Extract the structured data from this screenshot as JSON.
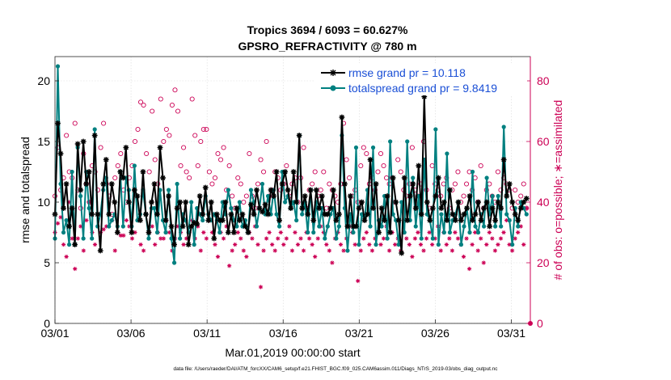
{
  "chart_data": {
    "type": "line",
    "title": [
      "Tropics 3694 / 6093 = 60.627%",
      "GPSRO_REFRACTIVITY @ 780 m"
    ],
    "xlabel": "Mar.01,2019 00:00:00 start",
    "ylabel_left": "rmse and totalspread",
    "ylabel_right": "# of obs: o=possible; ∗=assimilated",
    "footer": "data file: /Users/raeder/DAI/ATM_forcXX/CAM6_setup/f.e21.FHIST_BGC.f09_025.CAM6assim.011/Diags_NTrS_2019-03/obs_diag_output.nc",
    "x_tick_labels": [
      "03/01",
      "03/06",
      "03/11",
      "03/16",
      "03/21",
      "03/26",
      "03/31"
    ],
    "x_tick_days": [
      0,
      5,
      10,
      15,
      20,
      25,
      30
    ],
    "xlim": [
      0,
      31.25
    ],
    "ylim_left": [
      0,
      22
    ],
    "yticks_left": [
      0,
      5,
      10,
      15,
      20
    ],
    "ylim_right": [
      0,
      88
    ],
    "yticks_right": [
      0,
      20,
      40,
      60,
      80
    ],
    "colors": {
      "rmse": "#000000",
      "spread": "#008080",
      "obs": "#cc0055"
    },
    "legend_position": "top-right",
    "series": [
      {
        "name": "rmse grand pr = 10.118",
        "axis": "left",
        "marker": "asterisk",
        "values": [
          9.0,
          16.5,
          14.0,
          9.5,
          11.5,
          8.0,
          9.5,
          6.5,
          14.8,
          11.0,
          15.0,
          11.5,
          12.5,
          9.0,
          15.5,
          9.0,
          6.0,
          11.5,
          13.5,
          9.0,
          11.5,
          10.0,
          7.5,
          12.5,
          12.0,
          14.5,
          10.0,
          7.5,
          11.0,
          10.5,
          8.5,
          12.5,
          9.0,
          7.5,
          10.0,
          11.5,
          9.0,
          14.5,
          12.0,
          8.5,
          10.5,
          8.0,
          6.5,
          9.5,
          10.0,
          8.0,
          10.0,
          6.5,
          8.0,
          8.3,
          8.2,
          10.5,
          9.0,
          11.2,
          8.5,
          10.0,
          7.0,
          9.0,
          8.5,
          8.5,
          10.0,
          7.5,
          9.0,
          7.5,
          9.5,
          8.5,
          9.0,
          8.0,
          7.5,
          9.8,
          9.0,
          11.0,
          9.5,
          9.2,
          9.8,
          9.0,
          11.0,
          10.5,
          12.5,
          8.5,
          11.5,
          12.5,
          11.0,
          9.5,
          12.5,
          10.0,
          15.5,
          9.5,
          10.5,
          9.0,
          11.0,
          8.5,
          11.0,
          9.5,
          10.5,
          9.0,
          9.0,
          9.5,
          11.0,
          8.5,
          9.0,
          17.0,
          11.5,
          8.0,
          10.5,
          8.0,
          8.0,
          9.5,
          10.0,
          8.5,
          9.0,
          13.5,
          9.5,
          11.5,
          7.5,
          9.5,
          8.5,
          10.5,
          7.5,
          12.0,
          10.0,
          8.5,
          5.8,
          12.0,
          8.5,
          10.5,
          11.5,
          9.5,
          13.0,
          9.0,
          18.7,
          10.0,
          8.5,
          9.5,
          10.5,
          12.0,
          9.5,
          10.0,
          8.5,
          11.0,
          9.0,
          8.5,
          10.0,
          8.5,
          9.0,
          9.5,
          10.5,
          8.5,
          9.0,
          10.0,
          8.5,
          9.5,
          10.0,
          8.0,
          9.5,
          8.5,
          10.0,
          9.5,
          13.5,
          10.5,
          11.5,
          10.0,
          9.0,
          8.5,
          9.5,
          10.0,
          10.3
        ]
      },
      {
        "name": "totalspread grand pr = 9.8419",
        "axis": "left",
        "marker": "dot",
        "values": [
          7.0,
          21.2,
          11.5,
          7.5,
          8.5,
          6.5,
          12.5,
          6.5,
          14.5,
          10.5,
          7.0,
          12.5,
          9.5,
          7.0,
          16.0,
          8.0,
          9.0,
          11.0,
          12.0,
          8.0,
          8.5,
          9.0,
          8.0,
          12.5,
          8.0,
          12.0,
          11.0,
          8.0,
          13.0,
          8.5,
          9.0,
          11.0,
          9.0,
          7.0,
          9.5,
          9.5,
          7.5,
          11.0,
          8.5,
          7.5,
          11.0,
          7.0,
          5.0,
          11.5,
          7.0,
          9.0,
          8.5,
          7.5,
          10.0,
          6.5,
          9.5,
          9.0,
          8.5,
          10.5,
          9.0,
          8.5,
          9.0,
          8.5,
          7.5,
          10.0,
          9.0,
          11.0,
          9.5,
          8.5,
          8.0,
          10.0,
          8.0,
          8.5,
          7.5,
          11.0,
          10.0,
          8.0,
          9.5,
          11.5,
          9.0,
          10.5,
          9.0,
          11.0,
          9.0,
          8.0,
          12.5,
          10.0,
          10.5,
          9.5,
          10.0,
          8.5,
          15.5,
          9.0,
          10.0,
          7.5,
          11.0,
          7.5,
          10.0,
          8.0,
          9.5,
          7.0,
          8.0,
          9.0,
          9.5,
          7.0,
          8.0,
          15.5,
          9.5,
          6.0,
          9.0,
          7.5,
          14.5,
          6.5,
          9.0,
          8.5,
          11.0,
          8.0,
          14.5,
          6.5,
          8.5,
          8.0,
          10.5,
          7.0,
          15.0,
          9.0,
          8.5,
          6.5,
          10.0,
          7.5,
          15.0,
          8.5,
          12.0,
          8.0,
          10.5,
          7.0,
          13.5,
          9.0,
          8.5,
          7.0,
          16.0,
          6.5,
          9.0,
          7.5,
          14.0,
          7.5,
          8.5,
          9.0,
          10.0,
          6.5,
          8.0,
          9.5,
          7.5,
          12.5,
          8.0,
          7.5,
          9.0,
          8.0,
          12.0,
          9.0,
          10.5,
          8.0,
          10.5,
          8.0,
          16.2,
          9.0,
          8.5,
          6.5,
          9.5,
          8.0,
          10.0,
          9.5,
          9.0
        ]
      },
      {
        "name": "possible obs (o)",
        "axis": "right",
        "marker": "circle",
        "values": [
          42,
          58,
          44,
          48,
          62,
          50,
          48,
          66,
          44,
          38,
          56,
          46,
          40,
          52,
          50,
          44,
          58,
          66,
          46,
          42,
          36,
          48,
          52,
          56,
          44,
          40,
          48,
          52,
          60,
          64,
          73,
          72,
          56,
          50,
          70,
          54,
          46,
          74,
          60,
          64,
          62,
          72,
          77,
          70,
          52,
          58,
          50,
          48,
          74,
          62,
          52,
          60,
          64,
          64,
          50,
          46,
          48,
          56,
          54,
          58,
          44,
          52,
          42,
          38,
          48,
          46,
          40,
          42,
          56,
          42,
          38,
          46,
          54,
          50,
          60,
          42,
          44,
          50,
          48,
          44,
          46,
          52,
          42,
          46,
          48,
          40,
          48,
          58,
          38,
          44,
          46,
          50,
          42,
          44,
          50,
          38,
          46,
          44,
          42,
          40,
          46,
          66,
          54,
          48,
          42,
          44,
          40,
          52,
          58,
          56,
          46,
          48,
          44,
          50,
          56,
          52,
          48,
          46,
          48,
          40,
          54,
          50,
          44,
          42,
          46,
          58,
          44,
          42,
          46,
          60,
          44,
          38,
          52,
          46,
          44,
          42,
          46,
          48,
          38,
          44,
          46,
          50,
          40,
          42,
          46,
          50,
          44,
          48,
          40,
          52,
          38,
          44,
          46,
          42,
          40,
          50,
          44,
          48,
          46,
          44,
          38,
          44,
          40,
          42,
          46,
          38
        ]
      },
      {
        "name": "assimilated obs (∗)",
        "axis": "right",
        "marker": "asterisk",
        "values": [
          30,
          33,
          35,
          26,
          22,
          40,
          28,
          18,
          28,
          32,
          24,
          34,
          40,
          30,
          26,
          36,
          30,
          31,
          32,
          36,
          34,
          24,
          30,
          29,
          29,
          34,
          32,
          28,
          30,
          34,
          26,
          24,
          36,
          30,
          32,
          26,
          30,
          28,
          28,
          34,
          30,
          24,
          28,
          32,
          30,
          26,
          28,
          30,
          34,
          28,
          32,
          24,
          30,
          28,
          34,
          30,
          26,
          22,
          30,
          28,
          32,
          19,
          24,
          26,
          30,
          28,
          24,
          22,
          30,
          28,
          32,
          26,
          12,
          24,
          28,
          30,
          26,
          24,
          28,
          30,
          26,
          28,
          32,
          24,
          30,
          26,
          28,
          24,
          30,
          28,
          26,
          22,
          28,
          32,
          30,
          26,
          24,
          20,
          28,
          30,
          26,
          24,
          28,
          32,
          30,
          26,
          14,
          24,
          28,
          30,
          26,
          24,
          28,
          30,
          26,
          28,
          32,
          24,
          30,
          26,
          28,
          24,
          30,
          28,
          26,
          22,
          28,
          30,
          26,
          24,
          28,
          30,
          26,
          28,
          32,
          24,
          30,
          26,
          28,
          24,
          30,
          28,
          26,
          22,
          28,
          18,
          26,
          30,
          24,
          28,
          20,
          26,
          30,
          28,
          24,
          26,
          28,
          30,
          34,
          26,
          24,
          28,
          30,
          32,
          26,
          38
        ]
      }
    ]
  }
}
